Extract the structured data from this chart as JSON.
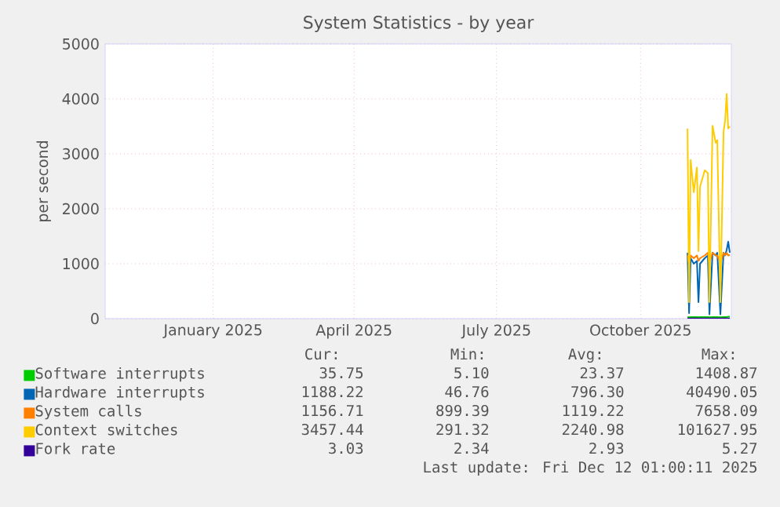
{
  "chart_data": {
    "type": "line",
    "title": "System Statistics - by year",
    "ylabel": "per second",
    "xlim": [
      "2024-11-07",
      "2025-12-12"
    ],
    "ylim": [
      0,
      5000
    ],
    "yticks": [
      0,
      1000,
      2000,
      3000,
      4000,
      5000
    ],
    "xticks": [
      {
        "value": "2025-01-15",
        "label": "January 2025"
      },
      {
        "value": "2025-04-15",
        "label": "April 2025"
      },
      {
        "value": "2025-07-15",
        "label": "July 2025"
      },
      {
        "value": "2025-10-15",
        "label": "October 2025"
      }
    ],
    "grid": true,
    "legend": "bottom",
    "x": [
      "2025-11-14",
      "2025-11-15",
      "2025-11-16",
      "2025-11-18",
      "2025-11-20",
      "2025-11-21",
      "2025-11-22",
      "2025-11-25",
      "2025-11-27",
      "2025-11-28",
      "2025-11-30",
      "2025-12-02",
      "2025-12-03",
      "2025-12-05",
      "2025-12-07",
      "2025-12-08",
      "2025-12-09",
      "2025-12-10",
      "2025-12-11"
    ],
    "series": [
      {
        "name": "Software interrupts",
        "color": "#00cc00",
        "values": [
          30,
          25,
          30,
          30,
          30,
          25,
          30,
          30,
          30,
          25,
          30,
          30,
          30,
          25,
          30,
          30,
          30,
          35,
          35
        ]
      },
      {
        "name": "Hardware interrupts",
        "color": "#0066b3",
        "values": [
          1200,
          100,
          1100,
          1000,
          1050,
          300,
          1000,
          1100,
          1150,
          80,
          1200,
          1150,
          1200,
          80,
          1200,
          1150,
          1250,
          1400,
          1200
        ]
      },
      {
        "name": "System calls",
        "color": "#ff8000",
        "values": [
          1150,
          1000,
          1150,
          1100,
          1150,
          1050,
          1100,
          1150,
          1200,
          1000,
          1200,
          1150,
          1150,
          1000,
          1200,
          1150,
          1200,
          1150,
          1160
        ]
      },
      {
        "name": "Context switches",
        "color": "#ffcc00",
        "values": [
          3460,
          300,
          2890,
          2300,
          2750,
          1230,
          2400,
          2700,
          2650,
          300,
          3510,
          3200,
          3250,
          300,
          3400,
          3600,
          4090,
          3460,
          3500
        ]
      },
      {
        "name": "Fork rate",
        "color": "#330099",
        "values": [
          3,
          3,
          3,
          3,
          3,
          3,
          3,
          3,
          3,
          3,
          3,
          3,
          3,
          3,
          3,
          3,
          3,
          3,
          3
        ]
      }
    ],
    "annotations": [
      "Cur:",
      "Min:",
      "Avg:",
      "Max:",
      "35.75",
      "5.10",
      "23.37",
      "1408.87",
      "1188.22",
      "46.76",
      "796.30",
      "40490.05",
      "1156.71",
      "899.39",
      "1119.22",
      "7658.09",
      "3457.44",
      "291.32",
      "2240.98",
      "101627.95",
      "3.03",
      "2.34",
      "2.93",
      "5.27",
      "Last update: Fri Dec 12 01:00:11 2025"
    ]
  }
}
